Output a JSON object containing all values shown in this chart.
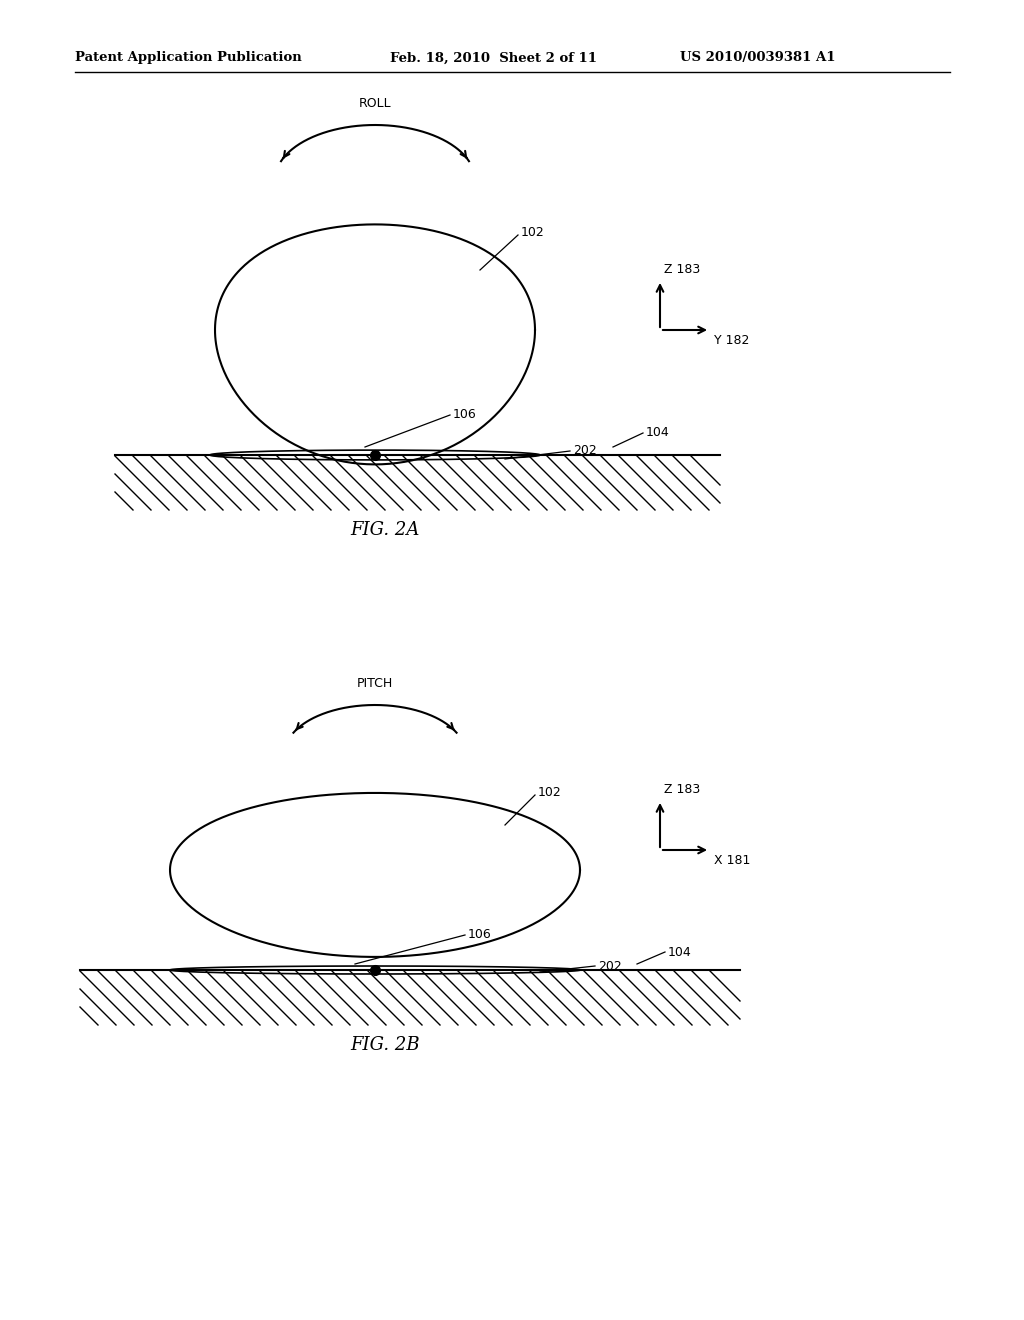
{
  "background_color": "#ffffff",
  "header_text": "Patent Application Publication",
  "header_date": "Feb. 18, 2010  Sheet 2 of 11",
  "header_patent": "US 2010/0039381 A1",
  "fig2a_label": "FIG. 2A",
  "fig2b_label": "FIG. 2B",
  "roll_label": "ROLL",
  "pitch_label": "PITCH",
  "label_102": "102",
  "label_104": "104",
  "label_106": "106",
  "label_202": "202",
  "label_z183": "Z 183",
  "label_y182": "Y 182",
  "label_x181": "X 181",
  "line_color": "#000000",
  "hatch_color": "#000000"
}
